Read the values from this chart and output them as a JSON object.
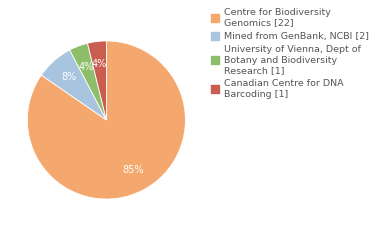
{
  "labels": [
    "Centre for Biodiversity\nGenomics [22]",
    "Mined from GenBank, NCBI [2]",
    "University of Vienna, Dept of\nBotany and Biodiversity\nResearch [1]",
    "Canadian Centre for DNA\nBarcoding [1]"
  ],
  "values": [
    22,
    2,
    1,
    1
  ],
  "colors": [
    "#f5a86e",
    "#a8c4de",
    "#8fbe6a",
    "#c95d50"
  ],
  "background_color": "#ffffff",
  "text_color": "#555555",
  "legend_fontsize": 6.8,
  "pct_fontsize": 7.0
}
